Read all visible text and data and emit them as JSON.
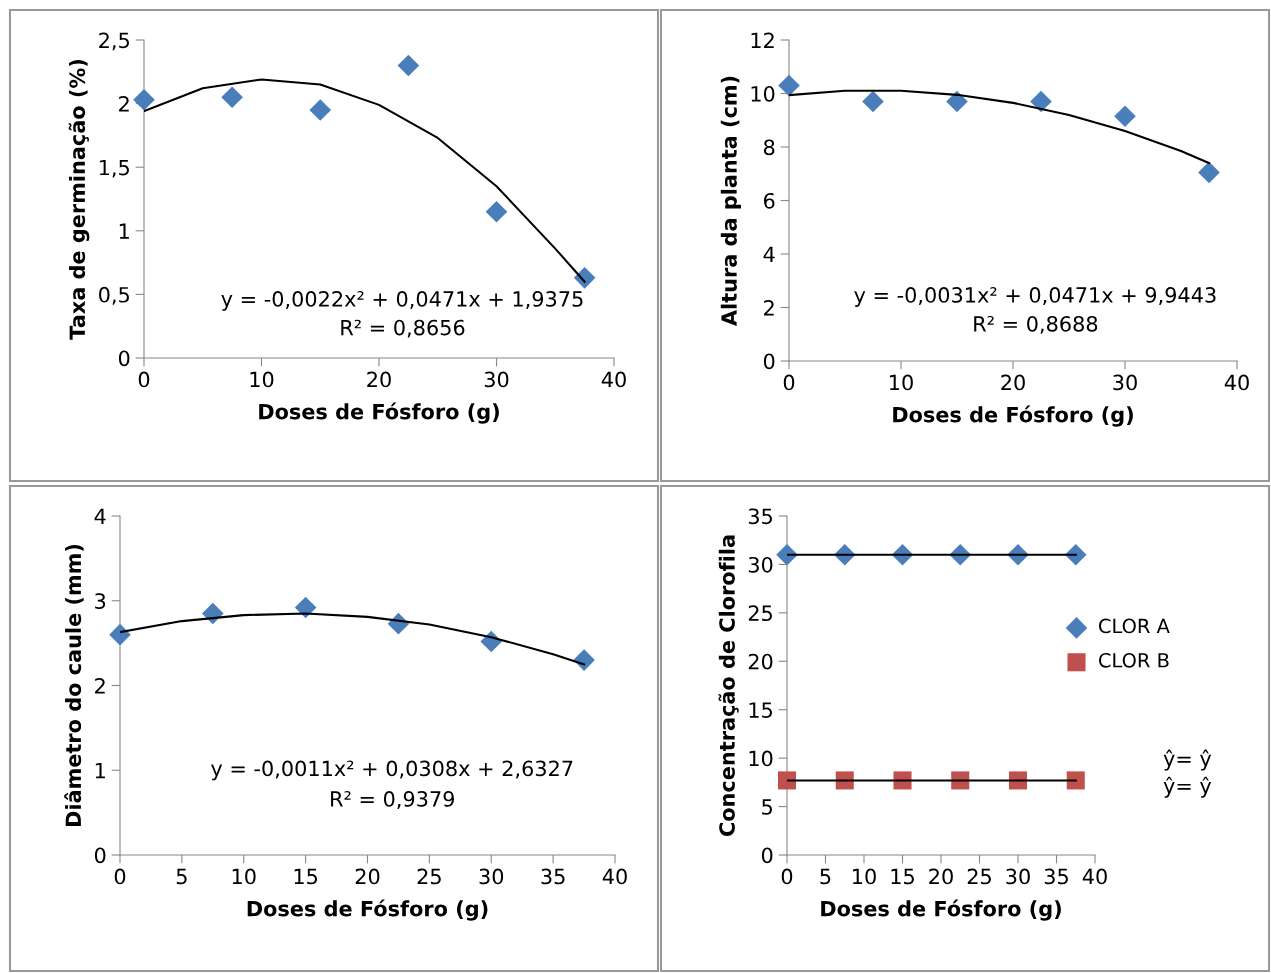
{
  "chart_data": [
    {
      "type": "scatter",
      "xlabel": "Doses de Fósforo (g)",
      "ylabel": "Taxa de germinação (%)",
      "xlim": [
        0,
        40
      ],
      "xticks": [
        0,
        10,
        20,
        30,
        40
      ],
      "ylim": [
        0,
        2.5
      ],
      "yticks": [
        {
          "value": 0,
          "label": "0"
        },
        {
          "value": 0.5,
          "label": "0,5"
        },
        {
          "value": 1,
          "label": "1"
        },
        {
          "value": 1.5,
          "label": "1,5"
        },
        {
          "value": 2,
          "label": "2"
        },
        {
          "value": 2.5,
          "label": "2,5"
        }
      ],
      "grid": false,
      "legend": false,
      "series": [
        {
          "color": "#4a7ebb",
          "marker": "diamond",
          "x": [
            0,
            7.5,
            15,
            22.5,
            30,
            37.5
          ],
          "values": [
            2.03,
            2.05,
            1.95,
            2.3,
            1.15,
            0.63
          ]
        },
        {
          "type": "line",
          "color": "#000000",
          "marker": "none",
          "x": [
            0,
            5,
            10,
            15,
            20,
            25,
            30,
            35,
            37.5
          ],
          "values": [
            1.94,
            2.12,
            2.19,
            2.15,
            1.99,
            1.73,
            1.35,
            0.86,
            0.6
          ]
        }
      ],
      "annotations": [
        "y = -0,0022x² + 0,0471x + 1,9375",
        "R² = 0,8656"
      ]
    },
    {
      "type": "scatter",
      "xlabel": "Doses de Fósforo (g)",
      "ylabel": "Altura da planta (cm)",
      "xlim": [
        0,
        40
      ],
      "xticks": [
        0,
        10,
        20,
        30,
        40
      ],
      "ylim": [
        0,
        12
      ],
      "yticks": [
        0,
        2,
        4,
        6,
        8,
        10,
        12
      ],
      "grid": false,
      "legend": false,
      "series": [
        {
          "color": "#4a7ebb",
          "marker": "diamond",
          "x": [
            0,
            7.5,
            15,
            22.5,
            30,
            37.5
          ],
          "values": [
            10.3,
            9.7,
            9.7,
            9.7,
            9.15,
            7.05
          ]
        },
        {
          "type": "line",
          "color": "#000000",
          "marker": "none",
          "x": [
            0,
            5,
            10,
            15,
            20,
            25,
            30,
            35,
            37.5
          ],
          "values": [
            9.94,
            10.1,
            10.1,
            9.95,
            9.65,
            9.2,
            8.6,
            7.85,
            7.4
          ]
        }
      ],
      "annotations": [
        "y = -0,0031x² + 0,0471x + 9,9443",
        "R² = 0,8688"
      ]
    },
    {
      "type": "scatter",
      "xlabel": "Doses de Fósforo (g)",
      "ylabel": "Diâmetro do caule (mm)",
      "xlim": [
        0,
        40
      ],
      "xticks": [
        0,
        5,
        10,
        15,
        20,
        25,
        30,
        35,
        40
      ],
      "ylim": [
        0,
        4
      ],
      "yticks": [
        0,
        1,
        2,
        3,
        4
      ],
      "grid": false,
      "legend": false,
      "series": [
        {
          "color": "#4a7ebb",
          "marker": "diamond",
          "x": [
            0,
            7.5,
            15,
            22.5,
            30,
            37.5
          ],
          "values": [
            2.6,
            2.85,
            2.92,
            2.73,
            2.52,
            2.3
          ]
        },
        {
          "type": "line",
          "color": "#000000",
          "marker": "none",
          "x": [
            0,
            5,
            10,
            15,
            20,
            25,
            30,
            35,
            37.5
          ],
          "values": [
            2.63,
            2.76,
            2.83,
            2.85,
            2.81,
            2.72,
            2.57,
            2.37,
            2.25
          ]
        }
      ],
      "annotations": [
        "y = -0,0011x² + 0,0308x + 2,6327",
        "R² = 0,9379"
      ]
    },
    {
      "type": "scatter",
      "xlabel": "Doses de Fósforo (g)",
      "ylabel": "Concentração de Clorofila",
      "xlim": [
        0,
        40
      ],
      "xticks": [
        0,
        5,
        10,
        15,
        20,
        25,
        30,
        35,
        40
      ],
      "ylim": [
        0,
        35
      ],
      "yticks": [
        0,
        5,
        10,
        15,
        20,
        25,
        30,
        35
      ],
      "grid": false,
      "legend": "right",
      "series": [
        {
          "name": "CLOR A",
          "color": "#4a7ebb",
          "marker": "diamond",
          "x": [
            0,
            7.5,
            15,
            22.5,
            30,
            37.5
          ],
          "values": [
            31,
            31,
            31,
            31,
            31,
            31
          ]
        },
        {
          "name": "CLOR B",
          "color": "#c0504d",
          "marker": "square",
          "x": [
            0,
            7.5,
            15,
            22.5,
            30,
            37.5
          ],
          "values": [
            7.7,
            7.7,
            7.7,
            7.7,
            7.7,
            7.7
          ]
        },
        {
          "type": "line",
          "color": "#000000",
          "marker": "none",
          "x": [
            0,
            37.5
          ],
          "values": [
            31,
            31
          ]
        },
        {
          "type": "line",
          "color": "#000000",
          "marker": "none",
          "x": [
            0,
            37.5
          ],
          "values": [
            7.7,
            7.7
          ]
        }
      ],
      "annotations": [
        "ŷ= ŷ",
        "ŷ= ŷ"
      ]
    }
  ]
}
